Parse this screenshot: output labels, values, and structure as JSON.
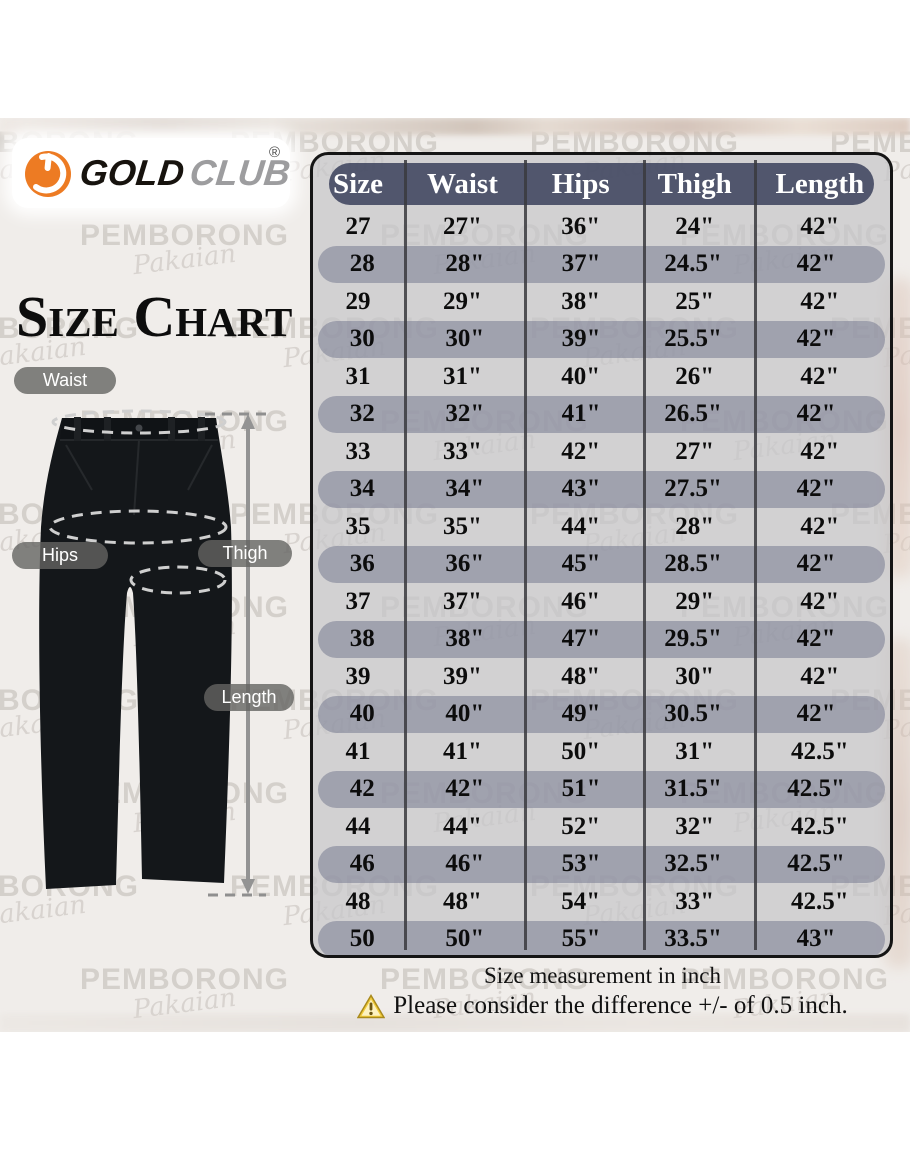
{
  "brand": {
    "name_primary": "GOLD",
    "name_secondary": "CLUB",
    "registered_mark": "®",
    "logo_icon": "gold-club-swoosh-icon",
    "orange": "#ED7B23"
  },
  "title": "Size Chart",
  "watermark": {
    "line1": "PEMBORONG",
    "line2": "Pakaian"
  },
  "diagram": {
    "labels": {
      "waist": "Waist",
      "hips": "Hips",
      "thigh": "Thigh",
      "length": "Length"
    }
  },
  "size_table": {
    "headers": [
      "Size",
      "Waist",
      "Hips",
      "Thigh",
      "Length"
    ],
    "rows": [
      [
        "27",
        "27\"",
        "36\"",
        "24\"",
        "42\""
      ],
      [
        "28",
        "28\"",
        "37\"",
        "24.5\"",
        "42\""
      ],
      [
        "29",
        "29\"",
        "38\"",
        "25\"",
        "42\""
      ],
      [
        "30",
        "30\"",
        "39\"",
        "25.5\"",
        "42\""
      ],
      [
        "31",
        "31\"",
        "40\"",
        "26\"",
        "42\""
      ],
      [
        "32",
        "32\"",
        "41\"",
        "26.5\"",
        "42\""
      ],
      [
        "33",
        "33\"",
        "42\"",
        "27\"",
        "42\""
      ],
      [
        "34",
        "34\"",
        "43\"",
        "27.5\"",
        "42\""
      ],
      [
        "35",
        "35\"",
        "44\"",
        "28\"",
        "42\""
      ],
      [
        "36",
        "36\"",
        "45\"",
        "28.5\"",
        "42\""
      ],
      [
        "37",
        "37\"",
        "46\"",
        "29\"",
        "42\""
      ],
      [
        "38",
        "38\"",
        "47\"",
        "29.5\"",
        "42\""
      ],
      [
        "39",
        "39\"",
        "48\"",
        "30\"",
        "42\""
      ],
      [
        "40",
        "40\"",
        "49\"",
        "30.5\"",
        "42\""
      ],
      [
        "41",
        "41\"",
        "50\"",
        "31\"",
        "42.5\""
      ],
      [
        "42",
        "42\"",
        "51\"",
        "31.5\"",
        "42.5\""
      ],
      [
        "44",
        "44\"",
        "52\"",
        "32\"",
        "42.5\""
      ],
      [
        "46",
        "46\"",
        "53\"",
        "32.5\"",
        "42.5\""
      ],
      [
        "48",
        "48\"",
        "54\"",
        "33\"",
        "42.5\""
      ],
      [
        "50",
        "50\"",
        "55\"",
        "33.5\"",
        "43\""
      ]
    ],
    "colors": {
      "header_bg": "#484E66",
      "alt_row_bg": "#9DA0AF",
      "table_bg": "#C6C6C9"
    }
  },
  "footer": {
    "line1": "Size measurement in inch",
    "line2": "Please consider the difference +/- of 0.5 inch.",
    "warning_icon": "warning-triangle-icon",
    "warning_yellow": "#F2CC3B"
  }
}
